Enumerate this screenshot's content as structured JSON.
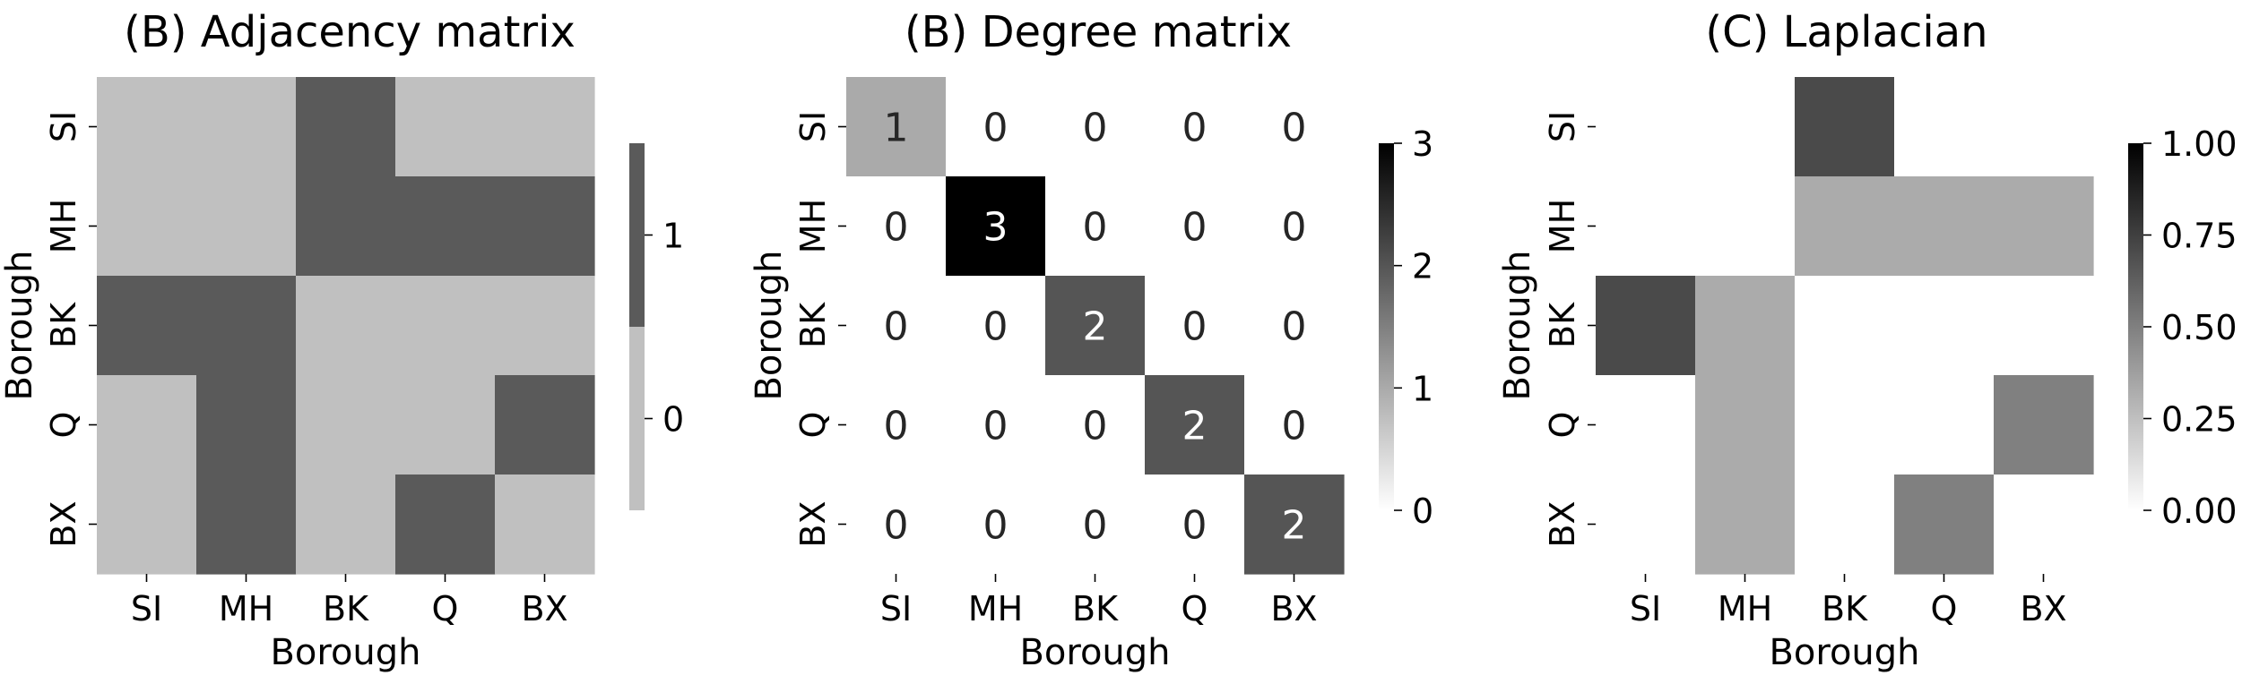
{
  "colors": {
    "background": "#ffffff",
    "text": "#000000",
    "light_gray": "#c0c0c0",
    "dark_gray": "#5a5a5a",
    "black": "#000000"
  },
  "chart_data": [
    {
      "type": "heatmap",
      "title": "(B) Adjacency matrix",
      "xlabel": "Borough",
      "ylabel": "Borough",
      "x_categories": [
        "SI",
        "MH",
        "BK",
        "Q",
        "BX"
      ],
      "y_categories": [
        "SI",
        "MH",
        "BK",
        "Q",
        "BX"
      ],
      "values": [
        [
          0,
          0,
          1,
          0,
          0
        ],
        [
          0,
          0,
          1,
          1,
          1
        ],
        [
          1,
          1,
          0,
          0,
          0
        ],
        [
          0,
          1,
          0,
          0,
          1
        ],
        [
          0,
          1,
          0,
          1,
          0
        ]
      ],
      "annotated": false,
      "colorbar": {
        "kind": "discrete",
        "levels": [
          0,
          1
        ],
        "colors": [
          "#c0c0c0",
          "#5a5a5a"
        ],
        "ticks": [
          "0",
          "1"
        ]
      }
    },
    {
      "type": "heatmap",
      "title": "(B) Degree matrix",
      "xlabel": "Borough",
      "ylabel": "Borough",
      "x_categories": [
        "SI",
        "MH",
        "BK",
        "Q",
        "BX"
      ],
      "y_categories": [
        "SI",
        "MH",
        "BK",
        "Q",
        "BX"
      ],
      "values": [
        [
          1,
          0,
          0,
          0,
          0
        ],
        [
          0,
          3,
          0,
          0,
          0
        ],
        [
          0,
          0,
          2,
          0,
          0
        ],
        [
          0,
          0,
          0,
          2,
          0
        ],
        [
          0,
          0,
          0,
          0,
          2
        ]
      ],
      "annotated": true,
      "zlim": [
        0,
        3
      ],
      "colorbar": {
        "kind": "continuous",
        "range": [
          0,
          3
        ],
        "ticks": [
          "0",
          "1",
          "2",
          "3"
        ]
      }
    },
    {
      "type": "heatmap",
      "title": "(C) Laplacian",
      "xlabel": "Borough",
      "ylabel": "Borough",
      "x_categories": [
        "SI",
        "MH",
        "BK",
        "Q",
        "BX"
      ],
      "y_categories": [
        "SI",
        "MH",
        "BK",
        "Q",
        "BX"
      ],
      "values": [
        [
          0,
          0,
          0.71,
          0,
          0
        ],
        [
          0,
          0,
          0.33,
          0.33,
          0.33
        ],
        [
          0.71,
          0.33,
          0,
          0,
          0
        ],
        [
          0,
          0.33,
          0,
          0,
          0.5
        ],
        [
          0,
          0.33,
          0,
          0.5,
          0
        ]
      ],
      "annotated": false,
      "zlim": [
        0,
        1
      ],
      "colorbar": {
        "kind": "continuous",
        "range": [
          0,
          1
        ],
        "ticks": [
          "0.00",
          "0.25",
          "0.50",
          "0.75",
          "1.00"
        ]
      }
    }
  ]
}
